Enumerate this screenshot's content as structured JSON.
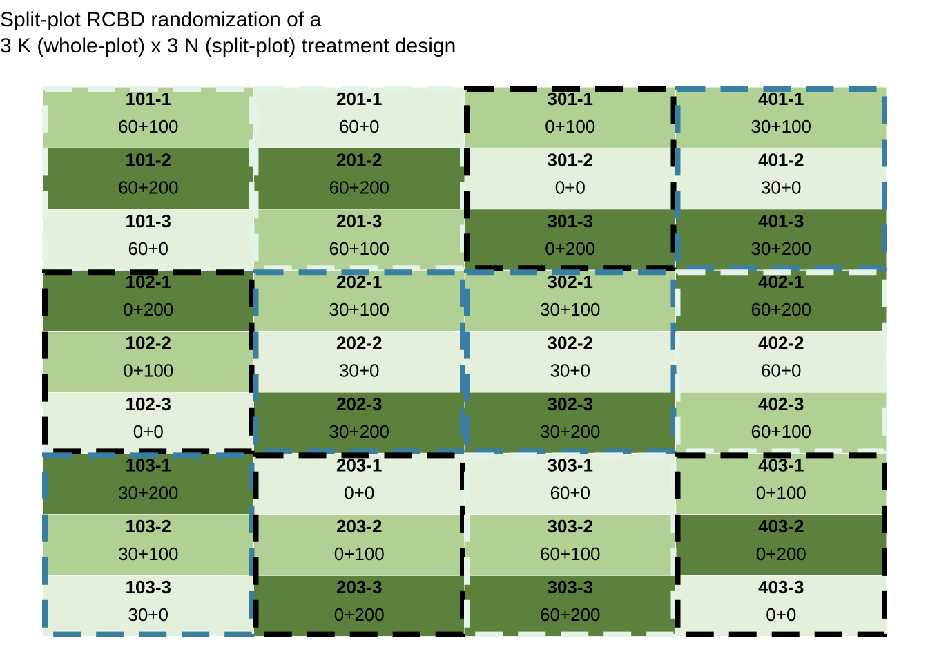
{
  "title": {
    "line1": "Split-plot RCBD randomization of a",
    "line2": "3 K (whole-plot) x 3 N (split-plot) treatment design"
  },
  "colors": {
    "n0": "#e5f0dc",
    "n100": "#b1d094",
    "n200": "#5b813d",
    "border_black": "#000000",
    "border_blue": "#3a7ea1",
    "border_light": "#e3f3e8"
  },
  "blocks": [
    {
      "whole_plots": [
        {
          "id": "101",
          "k": "60",
          "border": "light"
        },
        {
          "id": "102",
          "k": "0",
          "border": "black"
        },
        {
          "id": "103",
          "k": "30",
          "border": "blue"
        }
      ]
    },
    {
      "whole_plots": [
        {
          "id": "201",
          "k": "60",
          "border": "light"
        },
        {
          "id": "202",
          "k": "30",
          "border": "blue"
        },
        {
          "id": "203",
          "k": "0",
          "border": "black"
        }
      ]
    },
    {
      "whole_plots": [
        {
          "id": "301",
          "k": "0",
          "border": "black"
        },
        {
          "id": "302",
          "k": "30",
          "border": "blue"
        },
        {
          "id": "303",
          "k": "60",
          "border": "light"
        }
      ]
    },
    {
      "whole_plots": [
        {
          "id": "401",
          "k": "30",
          "border": "blue"
        },
        {
          "id": "402",
          "k": "60",
          "border": "light"
        },
        {
          "id": "403",
          "k": "0",
          "border": "black"
        }
      ]
    }
  ],
  "columns": [
    {
      "cells": [
        {
          "id": "101-1",
          "trt": "60+100",
          "n": "100"
        },
        {
          "id": "101-2",
          "trt": "60+200",
          "n": "200"
        },
        {
          "id": "101-3",
          "trt": "60+0",
          "n": "0"
        },
        {
          "id": "102-1",
          "trt": "0+200",
          "n": "200"
        },
        {
          "id": "102-2",
          "trt": "0+100",
          "n": "100"
        },
        {
          "id": "102-3",
          "trt": "0+0",
          "n": "0"
        },
        {
          "id": "103-1",
          "trt": "30+200",
          "n": "200"
        },
        {
          "id": "103-2",
          "trt": "30+100",
          "n": "100"
        },
        {
          "id": "103-3",
          "trt": "30+0",
          "n": "0"
        }
      ]
    },
    {
      "cells": [
        {
          "id": "201-1",
          "trt": "60+0",
          "n": "0"
        },
        {
          "id": "201-2",
          "trt": "60+200",
          "n": "200"
        },
        {
          "id": "201-3",
          "trt": "60+100",
          "n": "100"
        },
        {
          "id": "202-1",
          "trt": "30+100",
          "n": "100"
        },
        {
          "id": "202-2",
          "trt": "30+0",
          "n": "0"
        },
        {
          "id": "202-3",
          "trt": "30+200",
          "n": "200"
        },
        {
          "id": "203-1",
          "trt": "0+0",
          "n": "0"
        },
        {
          "id": "203-2",
          "trt": "0+100",
          "n": "100"
        },
        {
          "id": "203-3",
          "trt": "0+200",
          "n": "200"
        }
      ]
    },
    {
      "cells": [
        {
          "id": "301-1",
          "trt": "0+100",
          "n": "100"
        },
        {
          "id": "301-2",
          "trt": "0+0",
          "n": "0"
        },
        {
          "id": "301-3",
          "trt": "0+200",
          "n": "200"
        },
        {
          "id": "302-1",
          "trt": "30+100",
          "n": "100"
        },
        {
          "id": "302-2",
          "trt": "30+0",
          "n": "0"
        },
        {
          "id": "302-3",
          "trt": "30+200",
          "n": "200"
        },
        {
          "id": "303-1",
          "trt": "60+0",
          "n": "0"
        },
        {
          "id": "303-2",
          "trt": "60+100",
          "n": "100"
        },
        {
          "id": "303-3",
          "trt": "60+200",
          "n": "200"
        }
      ]
    },
    {
      "cells": [
        {
          "id": "401-1",
          "trt": "30+100",
          "n": "100"
        },
        {
          "id": "401-2",
          "trt": "30+0",
          "n": "0"
        },
        {
          "id": "401-3",
          "trt": "30+200",
          "n": "200"
        },
        {
          "id": "402-1",
          "trt": "60+200",
          "n": "200"
        },
        {
          "id": "402-2",
          "trt": "60+0",
          "n": "0"
        },
        {
          "id": "402-3",
          "trt": "60+100",
          "n": "100"
        },
        {
          "id": "403-1",
          "trt": "0+100",
          "n": "100"
        },
        {
          "id": "403-2",
          "trt": "0+200",
          "n": "200"
        },
        {
          "id": "403-3",
          "trt": "0+0",
          "n": "0"
        }
      ]
    }
  ]
}
